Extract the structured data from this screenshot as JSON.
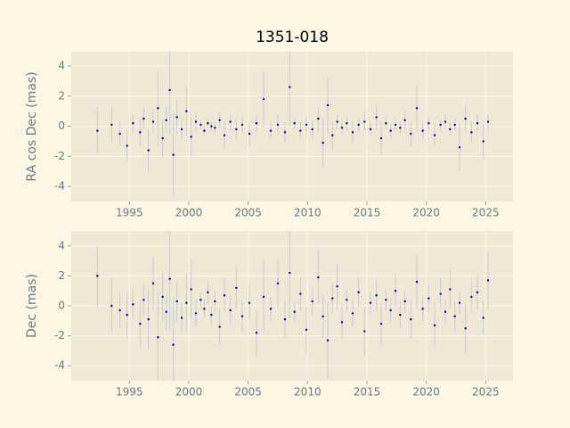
{
  "chart_data": [
    {
      "type": "scatter",
      "title": "1351-018",
      "ylabel": "RA cos Dec (mas)",
      "x": [
        1992.3,
        1993.5,
        1994.2,
        1994.8,
        1995.3,
        1995.9,
        1996.2,
        1996.6,
        1997.0,
        1997.4,
        1997.8,
        1998.1,
        1998.4,
        1998.7,
        1999.0,
        1999.4,
        1999.8,
        2000.2,
        2000.6,
        2001.0,
        2001.3,
        2001.6,
        2001.9,
        2002.2,
        2002.6,
        2003.0,
        2003.5,
        2004.0,
        2004.5,
        2005.1,
        2005.7,
        2006.3,
        2006.9,
        2007.5,
        2008.1,
        2008.5,
        2008.9,
        2009.4,
        2009.9,
        2010.4,
        2010.9,
        2011.3,
        2011.7,
        2012.1,
        2012.5,
        2012.9,
        2013.3,
        2013.8,
        2014.3,
        2014.8,
        2015.3,
        2015.8,
        2016.2,
        2016.6,
        2017.0,
        2017.4,
        2017.8,
        2018.2,
        2018.7,
        2019.2,
        2019.7,
        2020.2,
        2020.7,
        2021.2,
        2021.6,
        2022.0,
        2022.4,
        2022.8,
        2023.3,
        2023.8,
        2024.3,
        2024.8,
        2025.2
      ],
      "values": [
        -0.3,
        0.1,
        -0.5,
        -1.3,
        0.2,
        -0.4,
        0.5,
        -1.6,
        0.3,
        1.2,
        -0.8,
        0.4,
        2.4,
        -1.9,
        0.6,
        -0.2,
        1.0,
        -0.7,
        0.3,
        0.1,
        -0.3,
        0.2,
        0.0,
        -0.1,
        0.4,
        -0.6,
        0.3,
        -0.2,
        0.1,
        -0.5,
        0.2,
        1.8,
        -0.3,
        0.1,
        -0.4,
        2.6,
        0.2,
        -0.3,
        0.1,
        -0.2,
        0.5,
        -1.1,
        1.4,
        -0.6,
        0.3,
        -0.1,
        0.2,
        -0.4,
        0.1,
        0.3,
        -0.2,
        0.6,
        -0.8,
        0.2,
        -0.3,
        0.1,
        -0.1,
        0.4,
        -0.5,
        1.2,
        -0.3,
        0.2,
        -0.6,
        0.1,
        0.3,
        -0.2,
        0.1,
        -1.4,
        0.5,
        -0.4,
        0.2,
        -1.0,
        0.3
      ],
      "errors": [
        1.5,
        1.2,
        0.8,
        1.0,
        0.6,
        0.9,
        0.7,
        1.4,
        0.8,
        2.5,
        1.2,
        0.9,
        3.0,
        2.8,
        1.1,
        0.7,
        1.6,
        1.3,
        0.6,
        0.3,
        0.4,
        0.3,
        0.3,
        0.4,
        0.5,
        0.9,
        0.6,
        0.7,
        0.5,
        0.8,
        0.6,
        1.9,
        0.5,
        0.7,
        0.6,
        2.5,
        0.4,
        0.6,
        0.5,
        0.6,
        0.8,
        1.6,
        1.8,
        0.9,
        0.5,
        0.4,
        0.5,
        0.7,
        0.4,
        0.6,
        0.5,
        0.9,
        1.1,
        0.4,
        0.5,
        0.4,
        0.4,
        0.6,
        0.8,
        1.5,
        0.5,
        0.4,
        0.8,
        0.4,
        0.5,
        0.4,
        0.4,
        1.6,
        0.9,
        0.7,
        0.6,
        1.2,
        0.5
      ],
      "color": "#00008b",
      "error_color": "#b8bdd0",
      "xlim": [
        1990.1,
        2027.3
      ],
      "ylim": [
        -5,
        4.95
      ],
      "xticks": [
        1995,
        2000,
        2005,
        2010,
        2015,
        2020,
        2025
      ],
      "yticks": [
        -4,
        -2,
        0,
        2,
        4
      ],
      "grid": true
    },
    {
      "type": "scatter",
      "ylabel": "Dec (mas)",
      "x": [
        1992.3,
        1993.5,
        1994.2,
        1994.8,
        1995.3,
        1995.9,
        1996.2,
        1996.6,
        1997.0,
        1997.4,
        1997.8,
        1998.1,
        1998.4,
        1998.7,
        1999.0,
        1999.4,
        1999.8,
        2000.2,
        2000.6,
        2001.0,
        2001.3,
        2001.6,
        2001.9,
        2002.2,
        2002.6,
        2003.0,
        2003.5,
        2004.0,
        2004.5,
        2005.1,
        2005.7,
        2006.3,
        2006.9,
        2007.5,
        2008.1,
        2008.5,
        2008.9,
        2009.4,
        2009.9,
        2010.4,
        2010.9,
        2011.3,
        2011.7,
        2012.1,
        2012.5,
        2012.9,
        2013.3,
        2013.8,
        2014.3,
        2014.8,
        2015.3,
        2015.8,
        2016.2,
        2016.6,
        2017.0,
        2017.4,
        2017.8,
        2018.2,
        2018.7,
        2019.2,
        2019.7,
        2020.2,
        2020.7,
        2021.2,
        2021.6,
        2022.0,
        2022.4,
        2022.8,
        2023.3,
        2023.8,
        2024.3,
        2024.8,
        2025.2
      ],
      "values": [
        2.0,
        0.0,
        -0.3,
        -0.6,
        0.1,
        -1.2,
        0.4,
        -0.9,
        1.5,
        -2.1,
        0.6,
        -0.4,
        1.8,
        -2.6,
        0.3,
        -0.8,
        0.2,
        1.1,
        -0.5,
        0.4,
        -0.2,
        0.9,
        -0.6,
        0.3,
        -1.4,
        0.7,
        -0.3,
        1.2,
        -0.7,
        0.2,
        -1.8,
        0.6,
        -0.2,
        1.5,
        -0.9,
        2.2,
        -0.4,
        0.8,
        -1.6,
        0.3,
        1.9,
        -0.7,
        -2.3,
        0.5,
        1.3,
        -1.1,
        0.4,
        -0.5,
        0.9,
        -1.7,
        0.2,
        0.7,
        -1.2,
        0.4,
        -0.3,
        1.0,
        -0.6,
        0.3,
        -0.9,
        1.6,
        -0.2,
        0.5,
        -1.3,
        0.8,
        -0.4,
        1.1,
        -0.7,
        0.2,
        -1.5,
        0.6,
        0.9,
        -0.8,
        1.7
      ],
      "errors": [
        2.0,
        1.8,
        1.2,
        1.5,
        1.0,
        1.6,
        1.1,
        2.0,
        1.8,
        3.0,
        1.6,
        1.2,
        3.5,
        3.2,
        1.4,
        1.0,
        1.9,
        2.0,
        0.9,
        0.6,
        0.7,
        0.8,
        0.6,
        0.7,
        1.2,
        1.1,
        0.9,
        1.4,
        1.0,
        1.1,
        1.5,
        2.4,
        0.8,
        1.6,
        1.2,
        3.0,
        0.7,
        1.1,
        1.5,
        0.9,
        1.8,
        1.4,
        2.5,
        1.0,
        1.5,
        1.2,
        0.8,
        0.9,
        1.0,
        1.6,
        0.7,
        1.0,
        1.4,
        0.7,
        0.8,
        1.1,
        0.9,
        0.7,
        1.2,
        1.8,
        0.8,
        0.9,
        1.5,
        1.0,
        0.8,
        1.3,
        1.0,
        0.7,
        1.6,
        1.0,
        1.2,
        1.1,
        1.9
      ],
      "color": "#00008b",
      "error_color": "#b8bdd0",
      "xlim": [
        1990.1,
        2027.3
      ],
      "ylim": [
        -5,
        5
      ],
      "xticks": [
        1995,
        2000,
        2005,
        2010,
        2015,
        2020,
        2025
      ],
      "yticks": [
        -4,
        -2,
        0,
        2,
        4
      ],
      "grid": true
    }
  ]
}
